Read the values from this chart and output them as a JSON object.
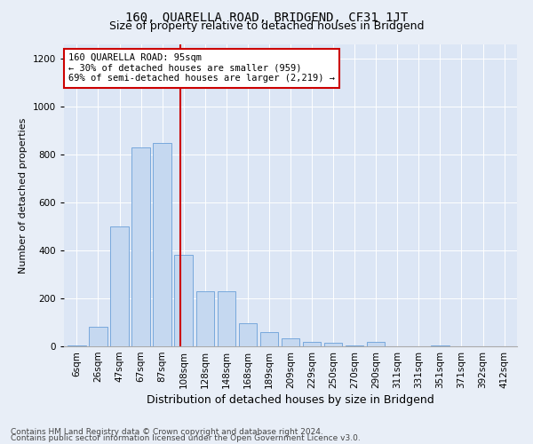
{
  "title": "160, QUARELLA ROAD, BRIDGEND, CF31 1JT",
  "subtitle": "Size of property relative to detached houses in Bridgend",
  "xlabel": "Distribution of detached houses by size in Bridgend",
  "ylabel": "Number of detached properties",
  "categories": [
    "6sqm",
    "26sqm",
    "47sqm",
    "67sqm",
    "87sqm",
    "108sqm",
    "128sqm",
    "148sqm",
    "168sqm",
    "189sqm",
    "209sqm",
    "229sqm",
    "250sqm",
    "270sqm",
    "290sqm",
    "311sqm",
    "331sqm",
    "351sqm",
    "371sqm",
    "392sqm",
    "412sqm"
  ],
  "values": [
    5,
    80,
    500,
    830,
    850,
    380,
    230,
    230,
    95,
    60,
    35,
    20,
    15,
    5,
    20,
    0,
    0,
    5,
    0,
    0,
    0
  ],
  "bar_color": "#c5d8f0",
  "bar_edge_color": "#6a9fd8",
  "vline_color": "#cc0000",
  "vline_linewidth": 1.5,
  "vline_x": 4.85,
  "annotation_text": "160 QUARELLA ROAD: 95sqm\n← 30% of detached houses are smaller (959)\n69% of semi-detached houses are larger (2,219) →",
  "annotation_box_facecolor": "white",
  "annotation_box_edgecolor": "#cc0000",
  "ylim": [
    0,
    1260
  ],
  "yticks": [
    0,
    200,
    400,
    600,
    800,
    1000,
    1200
  ],
  "footer_line1": "Contains HM Land Registry data © Crown copyright and database right 2024.",
  "footer_line2": "Contains public sector information licensed under the Open Government Licence v3.0.",
  "background_color": "#e8eef7",
  "plot_background_color": "#dce6f5",
  "grid_color": "#ffffff",
  "title_fontsize": 10,
  "subtitle_fontsize": 9,
  "xlabel_fontsize": 9,
  "ylabel_fontsize": 8,
  "tick_fontsize": 7.5,
  "annotation_fontsize": 7.5,
  "footer_fontsize": 6.5
}
